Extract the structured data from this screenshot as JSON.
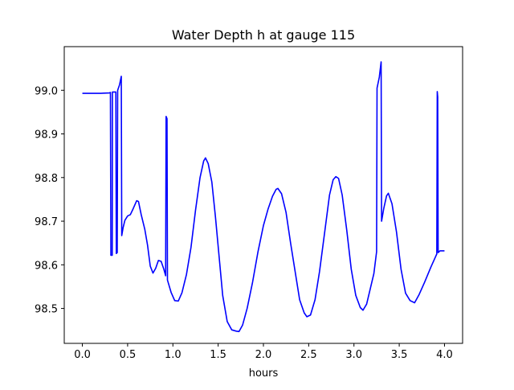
{
  "chart_data": {
    "type": "line",
    "title": "Water Depth h at gauge 115",
    "xlabel": "hours",
    "ylabel": "",
    "xlim": [
      -0.2,
      4.2
    ],
    "ylim": [
      98.42,
      99.1
    ],
    "xticks": [
      0.0,
      0.5,
      1.0,
      1.5,
      2.0,
      2.5,
      3.0,
      3.5,
      4.0
    ],
    "xtick_labels": [
      "0.0",
      "0.5",
      "1.0",
      "1.5",
      "2.0",
      "2.5",
      "3.0",
      "3.5",
      "4.0"
    ],
    "yticks": [
      98.5,
      98.6,
      98.7,
      98.8,
      98.9,
      99.0
    ],
    "ytick_labels": [
      "98.5",
      "98.6",
      "98.7",
      "98.8",
      "98.9",
      "99.0"
    ],
    "grid": false,
    "colors": {
      "line": "#0000ff",
      "axes": "#000000",
      "background": "#ffffff"
    },
    "series": [
      {
        "points": [
          [
            0.0,
            98.993
          ],
          [
            0.1,
            98.993
          ],
          [
            0.2,
            98.993
          ],
          [
            0.3,
            98.994
          ],
          [
            0.31,
            98.995
          ],
          [
            0.315,
            98.622
          ],
          [
            0.33,
            98.622
          ],
          [
            0.332,
            98.996
          ],
          [
            0.37,
            98.996
          ],
          [
            0.375,
            98.626
          ],
          [
            0.385,
            98.628
          ],
          [
            0.39,
            99.0
          ],
          [
            0.41,
            99.012
          ],
          [
            0.43,
            99.032
          ],
          [
            0.435,
            98.667
          ],
          [
            0.45,
            98.685
          ],
          [
            0.47,
            98.702
          ],
          [
            0.5,
            98.712
          ],
          [
            0.53,
            98.715
          ],
          [
            0.56,
            98.728
          ],
          [
            0.6,
            98.747
          ],
          [
            0.62,
            98.745
          ],
          [
            0.65,
            98.715
          ],
          [
            0.69,
            98.681
          ],
          [
            0.72,
            98.645
          ],
          [
            0.75,
            98.597
          ],
          [
            0.78,
            98.581
          ],
          [
            0.81,
            98.592
          ],
          [
            0.84,
            98.61
          ],
          [
            0.87,
            98.608
          ],
          [
            0.9,
            98.59
          ],
          [
            0.92,
            98.575
          ],
          [
            0.925,
            98.94
          ],
          [
            0.935,
            98.935
          ],
          [
            0.94,
            98.565
          ],
          [
            0.98,
            98.537
          ],
          [
            1.02,
            98.518
          ],
          [
            1.06,
            98.517
          ],
          [
            1.1,
            98.536
          ],
          [
            1.15,
            98.578
          ],
          [
            1.2,
            98.64
          ],
          [
            1.25,
            98.725
          ],
          [
            1.3,
            98.8
          ],
          [
            1.34,
            98.838
          ],
          [
            1.36,
            98.845
          ],
          [
            1.39,
            98.832
          ],
          [
            1.43,
            98.79
          ],
          [
            1.47,
            98.71
          ],
          [
            1.51,
            98.62
          ],
          [
            1.55,
            98.53
          ],
          [
            1.6,
            98.47
          ],
          [
            1.65,
            98.451
          ],
          [
            1.7,
            98.448
          ],
          [
            1.73,
            98.447
          ],
          [
            1.77,
            98.462
          ],
          [
            1.82,
            98.5
          ],
          [
            1.88,
            98.56
          ],
          [
            1.94,
            98.63
          ],
          [
            2.0,
            98.69
          ],
          [
            2.05,
            98.727
          ],
          [
            2.1,
            98.757
          ],
          [
            2.14,
            98.773
          ],
          [
            2.16,
            98.775
          ],
          [
            2.2,
            98.763
          ],
          [
            2.25,
            98.72
          ],
          [
            2.3,
            98.65
          ],
          [
            2.35,
            98.585
          ],
          [
            2.4,
            98.52
          ],
          [
            2.45,
            98.49
          ],
          [
            2.48,
            98.481
          ],
          [
            2.52,
            98.485
          ],
          [
            2.57,
            98.52
          ],
          [
            2.62,
            98.585
          ],
          [
            2.68,
            98.68
          ],
          [
            2.73,
            98.76
          ],
          [
            2.77,
            98.795
          ],
          [
            2.8,
            98.802
          ],
          [
            2.83,
            98.798
          ],
          [
            2.87,
            98.76
          ],
          [
            2.92,
            98.68
          ],
          [
            2.97,
            98.59
          ],
          [
            3.02,
            98.53
          ],
          [
            3.07,
            98.502
          ],
          [
            3.1,
            98.496
          ],
          [
            3.14,
            98.51
          ],
          [
            3.18,
            98.545
          ],
          [
            3.22,
            98.58
          ],
          [
            3.25,
            98.63
          ],
          [
            3.255,
            99.005
          ],
          [
            3.28,
            99.03
          ],
          [
            3.3,
            99.065
          ],
          [
            3.305,
            98.7
          ],
          [
            3.33,
            98.73
          ],
          [
            3.36,
            98.758
          ],
          [
            3.38,
            98.764
          ],
          [
            3.42,
            98.74
          ],
          [
            3.47,
            98.675
          ],
          [
            3.52,
            98.59
          ],
          [
            3.57,
            98.535
          ],
          [
            3.62,
            98.518
          ],
          [
            3.67,
            98.513
          ],
          [
            3.72,
            98.532
          ],
          [
            3.78,
            98.56
          ],
          [
            3.85,
            98.595
          ],
          [
            3.9,
            98.618
          ],
          [
            3.915,
            98.625
          ],
          [
            3.92,
            98.997
          ],
          [
            3.925,
            98.985
          ],
          [
            3.93,
            98.628
          ],
          [
            3.95,
            98.632
          ],
          [
            4.0,
            98.632
          ]
        ]
      }
    ]
  }
}
